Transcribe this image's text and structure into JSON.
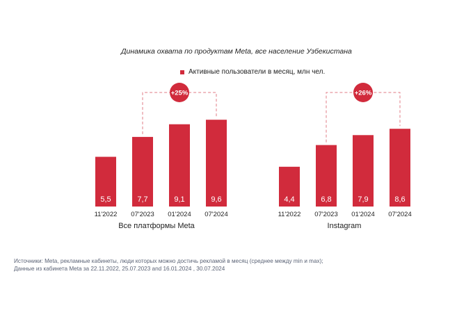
{
  "colors": {
    "bar": "#d12b3c",
    "connector": "#e07b85",
    "badge_text": "#ffffff",
    "label": "#222222"
  },
  "chart_data": {
    "type": "bar",
    "title": "Динамика охвата по продуктам Meta, все население Узбекистана",
    "legend": {
      "position": "top-center",
      "entries": [
        "Активные пользователи в месяц, млн чел."
      ]
    },
    "grid": false,
    "groups": [
      {
        "name": "Все платформы Meta",
        "categories": [
          "11'2022",
          "07'2023",
          "01'2024",
          "07'2024"
        ],
        "values": [
          5.5,
          7.7,
          9.1,
          9.6
        ],
        "value_labels": [
          "5,5",
          "7,7",
          "9,1",
          "9,6"
        ],
        "annotation": {
          "text": "+25%",
          "from": "07'2023",
          "to": "07'2024"
        }
      },
      {
        "name": "Instagram",
        "categories": [
          "11'2022",
          "07'2023",
          "01'2024",
          "07'2024"
        ],
        "values": [
          4.4,
          6.8,
          7.9,
          8.6
        ],
        "value_labels": [
          "4,4",
          "6,8",
          "7,9",
          "8,6"
        ],
        "annotation": {
          "text": "+26%",
          "from": "07'2023",
          "to": "07'2024"
        }
      }
    ]
  },
  "footer": {
    "source_line1": "Источники: Meta, рекламные кабинеты, люди которых можно достичь рекламой в месяц (среднее между min и max);",
    "source_line2": "Данные из кабинета Meta за 22.11.2022, 25.07.2023 and 16.01.2024 , 30.07.2024"
  }
}
